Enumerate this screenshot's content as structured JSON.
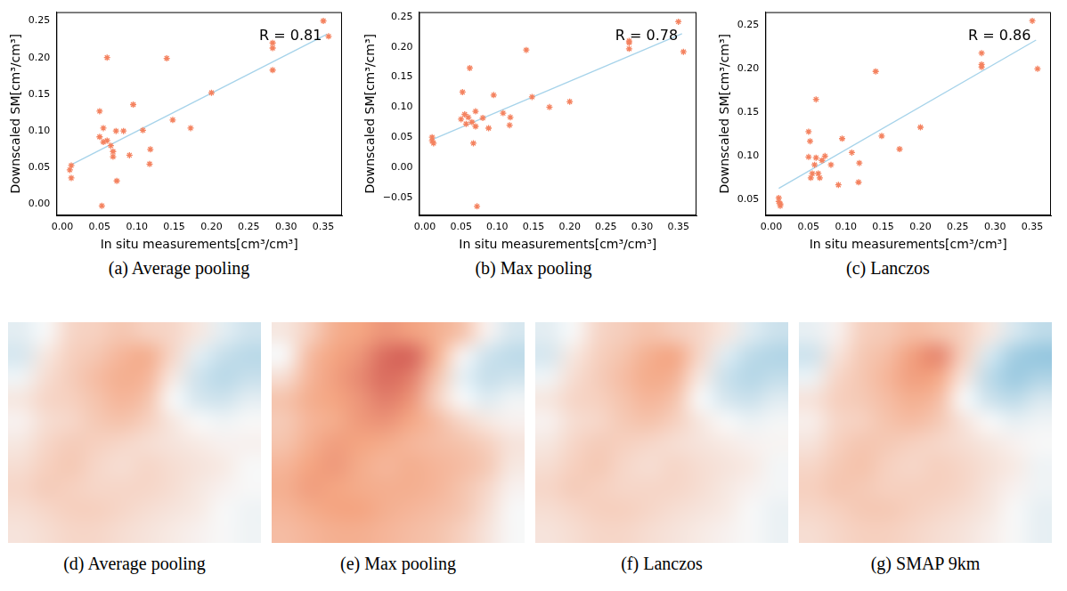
{
  "chart_data": [
    {
      "type": "scatter",
      "title": "(a) Average pooling",
      "x_label": "In situ measurements[cm³/cm³]",
      "y_label": "Downscaled SM[cm³/cm³]",
      "color": "#f4825f",
      "marker": "star",
      "grid": false,
      "x": [
        0.01,
        0.012,
        0.012,
        0.05,
        0.05,
        0.053,
        0.055,
        0.055,
        0.06,
        0.06,
        0.065,
        0.068,
        0.068,
        0.072,
        0.073,
        0.082,
        0.09,
        0.095,
        0.108,
        0.117,
        0.118,
        0.14,
        0.148,
        0.172,
        0.2,
        0.282,
        0.282,
        0.282,
        0.35,
        0.357
      ],
      "values": [
        0.047,
        0.036,
        0.053,
        0.127,
        0.092,
        -0.002,
        0.104,
        0.085,
        0.087,
        0.2,
        0.08,
        0.072,
        0.065,
        0.1,
        0.032,
        0.1,
        0.067,
        0.136,
        0.101,
        0.055,
        0.075,
        0.199,
        0.115,
        0.104,
        0.152,
        0.22,
        0.213,
        0.183,
        0.25,
        0.229
      ],
      "trend_line": {
        "x": [
          0.01,
          0.355
        ],
        "values": [
          0.053,
          0.232
        ],
        "color": "#a6d3ea"
      },
      "annotations": [
        "R = 0.81"
      ],
      "xlim": [
        -0.008,
        0.375
      ],
      "xticks": [
        {
          "value": 0,
          "label": "0.00"
        },
        {
          "value": 0.05,
          "label": "0.05"
        },
        {
          "value": 0.1,
          "label": "0.10"
        },
        {
          "value": 0.15,
          "label": "0.15"
        },
        {
          "value": 0.2,
          "label": "0.20"
        },
        {
          "value": 0.25,
          "label": "0.25"
        },
        {
          "value": 0.3,
          "label": "0.30"
        },
        {
          "value": 0.35,
          "label": "0.35"
        }
      ],
      "ylim": [
        -0.015,
        0.262
      ],
      "yticks": [
        {
          "value": 0,
          "label": "0.00"
        },
        {
          "value": 0.05,
          "label": "0.05"
        },
        {
          "value": 0.1,
          "label": "0.10"
        },
        {
          "value": 0.15,
          "label": "0.15"
        },
        {
          "value": 0.2,
          "label": "0.20"
        },
        {
          "value": 0.25,
          "label": "0.25"
        }
      ]
    },
    {
      "type": "scatter",
      "title": "(b) Max pooling",
      "x_label": "In situ measurements[cm³/cm³]",
      "y_label": "Downscaled SM[cm³/cm³]",
      "color": "#f4825f",
      "marker": "star",
      "grid": false,
      "x": [
        0.01,
        0.01,
        0.012,
        0.05,
        0.052,
        0.055,
        0.057,
        0.06,
        0.062,
        0.065,
        0.067,
        0.07,
        0.07,
        0.072,
        0.08,
        0.088,
        0.095,
        0.108,
        0.117,
        0.118,
        0.14,
        0.148,
        0.172,
        0.2,
        0.282,
        0.282,
        0.282,
        0.35,
        0.357
      ],
      "values": [
        0.05,
        0.044,
        0.04,
        0.08,
        0.125,
        0.088,
        0.072,
        0.083,
        0.165,
        0.075,
        0.04,
        0.093,
        0.068,
        -0.065,
        0.082,
        0.065,
        0.12,
        0.09,
        0.07,
        0.083,
        0.195,
        0.117,
        0.1,
        0.109,
        0.21,
        0.207,
        0.197,
        0.242,
        0.192
      ],
      "trend_line": {
        "x": [
          0.01,
          0.355
        ],
        "values": [
          0.046,
          0.222
        ],
        "color": "#a6d3ea"
      },
      "annotations": [
        "R = 0.78"
      ],
      "xlim": [
        -0.008,
        0.375
      ],
      "xticks": [
        {
          "value": 0,
          "label": "0.00"
        },
        {
          "value": 0.05,
          "label": "0.05"
        },
        {
          "value": 0.1,
          "label": "0.10"
        },
        {
          "value": 0.15,
          "label": "0.15"
        },
        {
          "value": 0.2,
          "label": "0.20"
        },
        {
          "value": 0.25,
          "label": "0.25"
        },
        {
          "value": 0.3,
          "label": "0.30"
        },
        {
          "value": 0.35,
          "label": "0.35"
        }
      ],
      "ylim": [
        -0.08,
        0.258
      ],
      "yticks": [
        {
          "value": -0.05,
          "label": "−0.05"
        },
        {
          "value": 0,
          "label": "0.00"
        },
        {
          "value": 0.05,
          "label": "0.05"
        },
        {
          "value": 0.1,
          "label": "0.10"
        },
        {
          "value": 0.15,
          "label": "0.15"
        },
        {
          "value": 0.2,
          "label": "0.20"
        },
        {
          "value": 0.25,
          "label": "0.25"
        }
      ]
    },
    {
      "type": "scatter",
      "title": "(c) Lanczos",
      "x_label": "In situ measurements[cm³/cm³]",
      "y_label": "Downscaled SM[cm³/cm³]",
      "color": "#f4825f",
      "marker": "star",
      "grid": false,
      "x": [
        0.01,
        0.01,
        0.012,
        0.012,
        0.05,
        0.05,
        0.052,
        0.053,
        0.055,
        0.058,
        0.06,
        0.06,
        0.063,
        0.065,
        0.068,
        0.072,
        0.08,
        0.09,
        0.095,
        0.108,
        0.117,
        0.118,
        0.14,
        0.148,
        0.172,
        0.2,
        0.282,
        0.282,
        0.282,
        0.35,
        0.357
      ],
      "values": [
        0.052,
        0.048,
        0.045,
        0.043,
        0.128,
        0.099,
        0.117,
        0.075,
        0.08,
        0.09,
        0.098,
        0.165,
        0.08,
        0.075,
        0.095,
        0.1,
        0.09,
        0.067,
        0.12,
        0.104,
        0.07,
        0.092,
        0.197,
        0.123,
        0.108,
        0.133,
        0.218,
        0.205,
        0.202,
        0.255,
        0.2
      ],
      "trend_line": {
        "x": [
          0.01,
          0.355
        ],
        "values": [
          0.063,
          0.233
        ],
        "color": "#a6d3ea"
      },
      "annotations": [
        "R = 0.86"
      ],
      "xlim": [
        -0.008,
        0.375
      ],
      "xticks": [
        {
          "value": 0,
          "label": "0.00"
        },
        {
          "value": 0.05,
          "label": "0.05"
        },
        {
          "value": 0.1,
          "label": "0.10"
        },
        {
          "value": 0.15,
          "label": "0.15"
        },
        {
          "value": 0.2,
          "label": "0.20"
        },
        {
          "value": 0.25,
          "label": "0.25"
        },
        {
          "value": 0.3,
          "label": "0.30"
        },
        {
          "value": 0.35,
          "label": "0.35"
        }
      ],
      "ylim": [
        0.032,
        0.265
      ],
      "yticks": [
        {
          "value": 0.05,
          "label": "0.05"
        },
        {
          "value": 0.1,
          "label": "0.10"
        },
        {
          "value": 0.15,
          "label": "0.15"
        },
        {
          "value": 0.2,
          "label": "0.20"
        },
        {
          "value": 0.25,
          "label": "0.25"
        }
      ]
    },
    {
      "type": "heatmap",
      "title": "(d) Average pooling",
      "tick_labels": false,
      "value_range": [
        0,
        1
      ],
      "cells": [
        [
          0.45,
          0.5,
          0.6,
          0.62,
          0.65,
          0.62,
          0.6,
          0.55,
          0.45,
          0.4
        ],
        [
          0.42,
          0.55,
          0.62,
          0.65,
          0.7,
          0.72,
          0.6,
          0.45,
          0.38,
          0.35
        ],
        [
          0.48,
          0.58,
          0.63,
          0.68,
          0.72,
          0.7,
          0.55,
          0.4,
          0.35,
          0.38
        ],
        [
          0.55,
          0.6,
          0.62,
          0.66,
          0.7,
          0.66,
          0.5,
          0.42,
          0.4,
          0.45
        ],
        [
          0.52,
          0.58,
          0.6,
          0.64,
          0.66,
          0.62,
          0.55,
          0.5,
          0.48,
          0.5
        ],
        [
          0.55,
          0.6,
          0.63,
          0.62,
          0.6,
          0.58,
          0.56,
          0.54,
          0.52,
          0.52
        ],
        [
          0.58,
          0.62,
          0.64,
          0.6,
          0.58,
          0.6,
          0.58,
          0.56,
          0.54,
          0.5
        ],
        [
          0.6,
          0.63,
          0.62,
          0.6,
          0.6,
          0.6,
          0.58,
          0.55,
          0.52,
          0.5
        ],
        [
          0.58,
          0.6,
          0.62,
          0.62,
          0.6,
          0.58,
          0.56,
          0.54,
          0.5,
          0.48
        ],
        [
          0.56,
          0.58,
          0.6,
          0.6,
          0.58,
          0.56,
          0.54,
          0.52,
          0.5,
          0.48
        ]
      ]
    },
    {
      "type": "heatmap",
      "title": "(e) Max pooling",
      "tick_labels": false,
      "value_range": [
        0,
        1
      ],
      "cells": [
        [
          0.55,
          0.62,
          0.72,
          0.75,
          0.78,
          0.76,
          0.72,
          0.66,
          0.52,
          0.42
        ],
        [
          0.5,
          0.68,
          0.75,
          0.78,
          0.85,
          0.86,
          0.72,
          0.52,
          0.4,
          0.36
        ],
        [
          0.58,
          0.7,
          0.76,
          0.8,
          0.85,
          0.82,
          0.66,
          0.46,
          0.38,
          0.4
        ],
        [
          0.66,
          0.72,
          0.75,
          0.78,
          0.82,
          0.78,
          0.62,
          0.5,
          0.44,
          0.48
        ],
        [
          0.64,
          0.7,
          0.73,
          0.77,
          0.78,
          0.74,
          0.68,
          0.6,
          0.55,
          0.52
        ],
        [
          0.66,
          0.72,
          0.76,
          0.75,
          0.73,
          0.7,
          0.68,
          0.66,
          0.62,
          0.56
        ],
        [
          0.7,
          0.75,
          0.77,
          0.73,
          0.7,
          0.72,
          0.7,
          0.68,
          0.64,
          0.55
        ],
        [
          0.72,
          0.76,
          0.75,
          0.73,
          0.72,
          0.72,
          0.7,
          0.66,
          0.6,
          0.52
        ],
        [
          0.7,
          0.73,
          0.75,
          0.75,
          0.72,
          0.7,
          0.68,
          0.65,
          0.58,
          0.5
        ],
        [
          0.68,
          0.7,
          0.72,
          0.72,
          0.7,
          0.68,
          0.66,
          0.62,
          0.56,
          0.5
        ]
      ]
    },
    {
      "type": "heatmap",
      "title": "(f) Lanczos",
      "tick_labels": false,
      "value_range": [
        0,
        1
      ],
      "cells": [
        [
          0.45,
          0.5,
          0.6,
          0.63,
          0.66,
          0.63,
          0.6,
          0.55,
          0.44,
          0.39
        ],
        [
          0.42,
          0.55,
          0.62,
          0.66,
          0.72,
          0.74,
          0.6,
          0.44,
          0.36,
          0.33
        ],
        [
          0.48,
          0.58,
          0.63,
          0.68,
          0.73,
          0.71,
          0.55,
          0.39,
          0.34,
          0.37
        ],
        [
          0.55,
          0.6,
          0.62,
          0.66,
          0.7,
          0.66,
          0.5,
          0.42,
          0.39,
          0.44
        ],
        [
          0.52,
          0.58,
          0.6,
          0.64,
          0.66,
          0.62,
          0.55,
          0.5,
          0.47,
          0.49
        ],
        [
          0.55,
          0.6,
          0.63,
          0.62,
          0.6,
          0.58,
          0.56,
          0.54,
          0.52,
          0.51
        ],
        [
          0.58,
          0.62,
          0.64,
          0.6,
          0.58,
          0.6,
          0.58,
          0.56,
          0.54,
          0.49
        ],
        [
          0.6,
          0.63,
          0.62,
          0.6,
          0.6,
          0.6,
          0.58,
          0.55,
          0.52,
          0.49
        ],
        [
          0.58,
          0.6,
          0.62,
          0.62,
          0.6,
          0.58,
          0.56,
          0.54,
          0.5,
          0.47
        ],
        [
          0.56,
          0.58,
          0.6,
          0.6,
          0.58,
          0.56,
          0.54,
          0.52,
          0.5,
          0.47
        ]
      ]
    },
    {
      "type": "heatmap",
      "title": "(g) SMAP 9km",
      "tick_labels": false,
      "value_range": [
        0,
        1
      ],
      "cells": [
        [
          0.46,
          0.52,
          0.62,
          0.64,
          0.68,
          0.66,
          0.62,
          0.55,
          0.42,
          0.36
        ],
        [
          0.4,
          0.56,
          0.64,
          0.68,
          0.76,
          0.8,
          0.62,
          0.42,
          0.3,
          0.26
        ],
        [
          0.47,
          0.6,
          0.65,
          0.7,
          0.76,
          0.74,
          0.56,
          0.36,
          0.28,
          0.32
        ],
        [
          0.56,
          0.62,
          0.64,
          0.68,
          0.72,
          0.68,
          0.5,
          0.4,
          0.36,
          0.42
        ],
        [
          0.53,
          0.6,
          0.62,
          0.66,
          0.68,
          0.64,
          0.56,
          0.5,
          0.46,
          0.48
        ],
        [
          0.56,
          0.62,
          0.65,
          0.64,
          0.62,
          0.6,
          0.58,
          0.55,
          0.52,
          0.5
        ],
        [
          0.6,
          0.64,
          0.66,
          0.62,
          0.6,
          0.62,
          0.6,
          0.57,
          0.54,
          0.48
        ],
        [
          0.62,
          0.65,
          0.64,
          0.62,
          0.62,
          0.62,
          0.6,
          0.56,
          0.52,
          0.48
        ],
        [
          0.6,
          0.62,
          0.64,
          0.64,
          0.62,
          0.6,
          0.58,
          0.55,
          0.5,
          0.46
        ],
        [
          0.58,
          0.6,
          0.62,
          0.62,
          0.6,
          0.58,
          0.56,
          0.53,
          0.5,
          0.46
        ]
      ]
    }
  ]
}
